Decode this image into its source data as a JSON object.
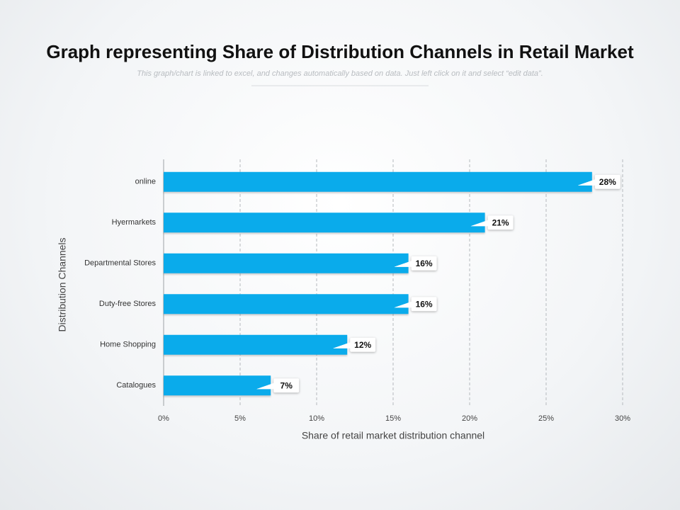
{
  "chart_data": {
    "type": "bar",
    "orientation": "horizontal",
    "title": "Graph representing Share of Distribution Channels in Retail Market",
    "subtitle": "This graph/chart is linked to excel, and changes automatically based on data. Just left click on it and select “edit data”.",
    "x_label": "Share of retail market distribution channel",
    "y_label": "Distribution Channels",
    "categories": [
      "online",
      "Hyermarkets",
      "Departmental Stores",
      "Duty-free Stores",
      "Home Shopping",
      "Catalogues"
    ],
    "values": [
      28,
      21,
      16,
      16,
      12,
      7
    ],
    "value_labels": [
      "28%",
      "21%",
      "16%",
      "16%",
      "12%",
      "7%"
    ],
    "color": "#0aabeb",
    "xlim": [
      0,
      30
    ],
    "xticks": [
      {
        "value": 0,
        "label": "0%"
      },
      {
        "value": 5,
        "label": "5%"
      },
      {
        "value": 10,
        "label": "10%"
      },
      {
        "value": 15,
        "label": "15%"
      },
      {
        "value": 20,
        "label": "20%"
      },
      {
        "value": 25,
        "label": "25%"
      },
      {
        "value": 30,
        "label": "30%"
      }
    ],
    "grid": true
  }
}
